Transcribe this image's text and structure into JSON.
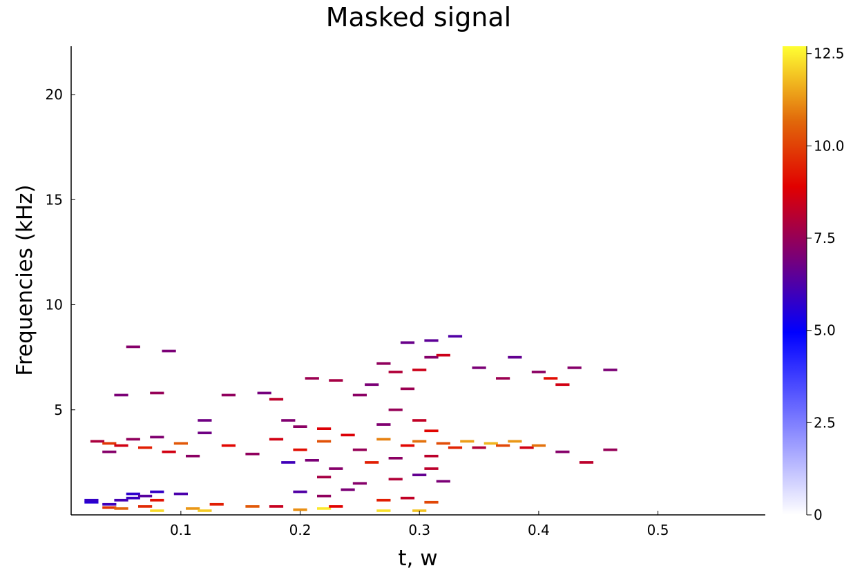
{
  "chart_data": {
    "type": "heatmap",
    "title": "Masked signal",
    "xlabel": "t, w",
    "ylabel": "Frequencies (kHz)",
    "xlim": [
      0.008,
      0.59
    ],
    "ylim": [
      0,
      22.3
    ],
    "x_ticks": [
      0.1,
      0.2,
      0.3,
      0.4,
      0.5
    ],
    "x_tick_labels": [
      "0.1",
      "0.2",
      "0.3",
      "0.4",
      "0.5"
    ],
    "y_ticks": [
      5,
      10,
      15,
      20
    ],
    "y_tick_labels": [
      "5",
      "10",
      "15",
      "20"
    ],
    "colorbar": {
      "range": [
        0,
        12.7
      ],
      "ticks": [
        0,
        2.5,
        5.0,
        7.5,
        10.0,
        12.5
      ],
      "tick_labels": [
        "0",
        "2.5",
        "5.0",
        "7.5",
        "10.0",
        "12.5"
      ],
      "colormap": [
        "#ffffff",
        "#0000ff",
        "#7a0077",
        "#e10000",
        "#e1680a",
        "#ffff33"
      ]
    },
    "grid": false,
    "legend": "none",
    "cell_duration": 0.0117,
    "cell_height_khz": 0.12,
    "cells": [
      [
        0.025,
        0.6,
        5.6
      ],
      [
        0.025,
        0.7,
        5.8
      ],
      [
        0.04,
        0.5,
        6.0
      ],
      [
        0.05,
        0.7,
        6.1
      ],
      [
        0.06,
        0.8,
        5.9
      ],
      [
        0.06,
        1.0,
        5.7
      ],
      [
        0.07,
        0.9,
        6.4
      ],
      [
        0.08,
        0.7,
        9.2
      ],
      [
        0.08,
        1.1,
        5.8
      ],
      [
        0.1,
        1.0,
        6.2
      ],
      [
        0.04,
        0.35,
        9.8
      ],
      [
        0.05,
        0.3,
        10.6
      ],
      [
        0.07,
        0.4,
        9.6
      ],
      [
        0.11,
        0.3,
        11.3
      ],
      [
        0.13,
        0.5,
        9.4
      ],
      [
        0.16,
        0.4,
        10.4
      ],
      [
        0.08,
        0.2,
        12.2
      ],
      [
        0.12,
        0.2,
        12.0
      ],
      [
        0.2,
        0.25,
        11.2
      ],
      [
        0.22,
        0.3,
        12.4
      ],
      [
        0.27,
        0.2,
        12.3
      ],
      [
        0.3,
        0.2,
        11.9
      ],
      [
        0.18,
        0.4,
        8.4
      ],
      [
        0.23,
        0.4,
        8.9
      ],
      [
        0.03,
        3.5,
        7.9
      ],
      [
        0.04,
        3.4,
        9.8
      ],
      [
        0.04,
        3.0,
        7.2
      ],
      [
        0.05,
        3.3,
        8.6
      ],
      [
        0.06,
        3.6,
        7.4
      ],
      [
        0.07,
        3.2,
        9.4
      ],
      [
        0.08,
        3.7,
        7.1
      ],
      [
        0.09,
        3.0,
        8.6
      ],
      [
        0.1,
        3.4,
        10.4
      ],
      [
        0.11,
        2.8,
        7.3
      ],
      [
        0.12,
        3.9,
        6.8
      ],
      [
        0.14,
        3.3,
        9.0
      ],
      [
        0.16,
        2.9,
        7.4
      ],
      [
        0.18,
        3.6,
        8.6
      ],
      [
        0.19,
        2.5,
        6.0
      ],
      [
        0.2,
        3.1,
        9.1
      ],
      [
        0.21,
        2.6,
        7.0
      ],
      [
        0.22,
        3.5,
        10.3
      ],
      [
        0.23,
        2.2,
        7.2
      ],
      [
        0.24,
        3.8,
        8.8
      ],
      [
        0.25,
        3.1,
        7.5
      ],
      [
        0.26,
        2.5,
        9.4
      ],
      [
        0.27,
        3.6,
        11.0
      ],
      [
        0.28,
        2.7,
        7.3
      ],
      [
        0.29,
        3.3,
        9.0
      ],
      [
        0.3,
        3.5,
        10.8
      ],
      [
        0.31,
        2.8,
        8.2
      ],
      [
        0.32,
        3.4,
        10.2
      ],
      [
        0.33,
        3.2,
        9.5
      ],
      [
        0.34,
        3.5,
        11.4
      ],
      [
        0.35,
        3.2,
        8.0
      ],
      [
        0.36,
        3.4,
        11.7
      ],
      [
        0.37,
        3.3,
        10.1
      ],
      [
        0.38,
        3.5,
        11.3
      ],
      [
        0.39,
        3.2,
        8.6
      ],
      [
        0.4,
        3.3,
        10.8
      ],
      [
        0.42,
        3.0,
        7.2
      ],
      [
        0.44,
        2.5,
        8.2
      ],
      [
        0.46,
        3.1,
        7.5
      ],
      [
        0.05,
        5.7,
        7.0
      ],
      [
        0.08,
        5.8,
        7.5
      ],
      [
        0.12,
        4.5,
        6.8
      ],
      [
        0.14,
        5.7,
        7.4
      ],
      [
        0.17,
        5.8,
        6.9
      ],
      [
        0.18,
        5.5,
        8.2
      ],
      [
        0.19,
        4.5,
        7.1
      ],
      [
        0.2,
        4.2,
        7.3
      ],
      [
        0.21,
        6.5,
        7.6
      ],
      [
        0.22,
        4.1,
        8.8
      ],
      [
        0.23,
        6.4,
        7.8
      ],
      [
        0.25,
        5.7,
        7.3
      ],
      [
        0.26,
        6.2,
        7.0
      ],
      [
        0.27,
        7.2,
        7.4
      ],
      [
        0.28,
        6.8,
        8.0
      ],
      [
        0.29,
        6.0,
        7.6
      ],
      [
        0.29,
        8.2,
        6.7
      ],
      [
        0.3,
        6.9,
        8.5
      ],
      [
        0.31,
        7.5,
        7.2
      ],
      [
        0.31,
        8.3,
        6.5
      ],
      [
        0.32,
        7.6,
        8.5
      ],
      [
        0.33,
        8.5,
        6.3
      ],
      [
        0.35,
        7.0,
        7.0
      ],
      [
        0.37,
        6.5,
        7.6
      ],
      [
        0.38,
        7.5,
        6.6
      ],
      [
        0.4,
        6.8,
        7.3
      ],
      [
        0.41,
        6.5,
        9.1
      ],
      [
        0.42,
        6.2,
        8.6
      ],
      [
        0.43,
        7.0,
        7.2
      ],
      [
        0.46,
        6.9,
        7.0
      ],
      [
        0.06,
        8.0,
        7.2
      ],
      [
        0.09,
        7.8,
        7.0
      ],
      [
        0.28,
        5.0,
        7.5
      ],
      [
        0.3,
        4.5,
        8.3
      ],
      [
        0.31,
        4.0,
        9.0
      ],
      [
        0.27,
        4.3,
        7.1
      ],
      [
        0.22,
        1.8,
        7.8
      ],
      [
        0.25,
        1.5,
        7.2
      ],
      [
        0.28,
        1.7,
        8.0
      ],
      [
        0.3,
        1.9,
        6.6
      ],
      [
        0.31,
        2.2,
        8.2
      ],
      [
        0.32,
        1.6,
        7.0
      ],
      [
        0.29,
        0.8,
        8.3
      ],
      [
        0.31,
        0.6,
        10.1
      ],
      [
        0.27,
        0.7,
        9.4
      ],
      [
        0.22,
        0.9,
        7.4
      ],
      [
        0.24,
        1.2,
        7.0
      ],
      [
        0.2,
        1.1,
        6.3
      ]
    ]
  }
}
